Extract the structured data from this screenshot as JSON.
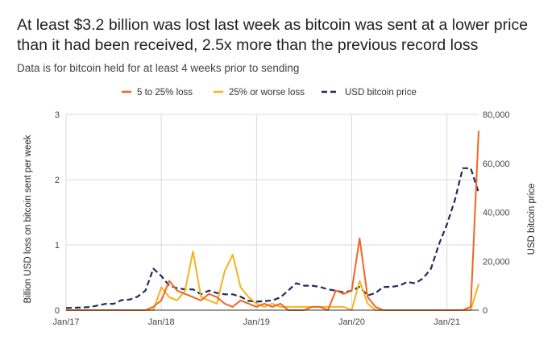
{
  "chart_data": {
    "type": "line",
    "title": "At least $3.2 billion was lost last week as bitcoin was sent at a lower price than it had been received, 2.5x more than the previous record loss",
    "subtitle": "Data is for bitcoin held for at least 4 weeks prior to sending",
    "ylabel": "Billion USD loss on bitcoin sent per week",
    "y2label": "USD bitcoin price",
    "ylim": [
      0,
      3
    ],
    "y2lim": [
      0,
      80000
    ],
    "yticks": [
      "0",
      "1",
      "2",
      "3"
    ],
    "y2ticks": [
      "0",
      "20,000",
      "40,000",
      "60,000",
      "80,000"
    ],
    "xticks": [
      "Jan/17",
      "Jan/18",
      "Jan/19",
      "Jan/20",
      "Jan/21"
    ],
    "xrange": [
      "2017-01",
      "2021-05"
    ],
    "grid": true,
    "legend_position": "top",
    "x": [
      "2017-01",
      "2017-02",
      "2017-03",
      "2017-04",
      "2017-05",
      "2017-06",
      "2017-07",
      "2017-08",
      "2017-09",
      "2017-10",
      "2017-11",
      "2017-12",
      "2018-01",
      "2018-02",
      "2018-03",
      "2018-04",
      "2018-05",
      "2018-06",
      "2018-07",
      "2018-08",
      "2018-09",
      "2018-10",
      "2018-11",
      "2018-12",
      "2019-01",
      "2019-02",
      "2019-03",
      "2019-04",
      "2019-05",
      "2019-06",
      "2019-07",
      "2019-08",
      "2019-09",
      "2019-10",
      "2019-11",
      "2019-12",
      "2020-01",
      "2020-02",
      "2020-03",
      "2020-04",
      "2020-05",
      "2020-06",
      "2020-07",
      "2020-08",
      "2020-09",
      "2020-10",
      "2020-11",
      "2020-12",
      "2021-01",
      "2021-02",
      "2021-03",
      "2021-04",
      "2021-05"
    ],
    "series": [
      {
        "name": "5 to 25% loss",
        "color": "#f16522",
        "axis": "left",
        "values": [
          0.0,
          0.0,
          0.0,
          0.0,
          0.0,
          0.0,
          0.0,
          0.0,
          0.0,
          0.0,
          0.0,
          0.05,
          0.15,
          0.45,
          0.3,
          0.25,
          0.2,
          0.15,
          0.25,
          0.2,
          0.1,
          0.05,
          0.15,
          0.1,
          0.05,
          0.1,
          0.05,
          0.1,
          0.0,
          0.0,
          0.0,
          0.05,
          0.05,
          0.0,
          0.3,
          0.25,
          0.3,
          1.1,
          0.2,
          0.05,
          0.0,
          0.0,
          0.0,
          0.0,
          0.0,
          0.0,
          0.0,
          0.0,
          0.0,
          0.0,
          0.0,
          0.05,
          2.75
        ]
      },
      {
        "name": "25% or worse loss",
        "color": "#f5b41b",
        "axis": "left",
        "values": [
          0.0,
          0.0,
          0.0,
          0.0,
          0.0,
          0.0,
          0.0,
          0.0,
          0.0,
          0.0,
          0.0,
          0.0,
          0.35,
          0.2,
          0.15,
          0.3,
          0.9,
          0.2,
          0.15,
          0.1,
          0.6,
          0.85,
          0.35,
          0.2,
          0.1,
          0.05,
          0.1,
          0.05,
          0.05,
          0.05,
          0.05,
          0.05,
          0.05,
          0.05,
          0.05,
          0.05,
          0.0,
          0.45,
          0.1,
          0.0,
          0.0,
          0.0,
          0.0,
          0.0,
          0.0,
          0.0,
          0.0,
          0.0,
          0.0,
          0.0,
          0.0,
          0.0,
          0.4
        ]
      },
      {
        "name": "USD bitcoin price",
        "color": "#1f2d5c",
        "axis": "right",
        "dashed": true,
        "values": [
          900,
          1000,
          1100,
          1300,
          1900,
          2600,
          2600,
          4100,
          4300,
          5500,
          8000,
          17000,
          14000,
          10000,
          9000,
          8500,
          8500,
          6500,
          8000,
          7000,
          6500,
          6500,
          5500,
          3800,
          3500,
          3700,
          4000,
          5200,
          8000,
          11000,
          10000,
          10000,
          9500,
          8500,
          8000,
          7200,
          8000,
          9500,
          6000,
          7000,
          9500,
          9500,
          10000,
          11500,
          11000,
          13000,
          17000,
          27000,
          35000,
          45000,
          58000,
          58000,
          48000
        ]
      }
    ]
  }
}
